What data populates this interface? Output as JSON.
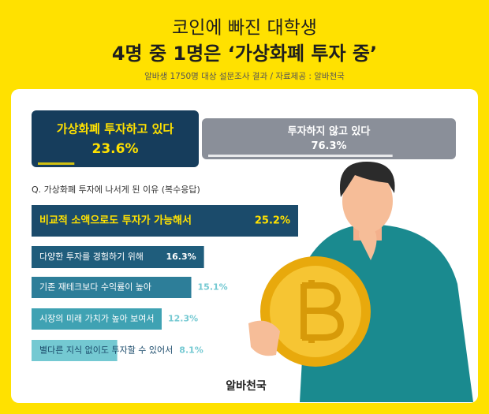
{
  "title_line1": "코인에 빠진 대학생",
  "title_line2": "4명 중 1명은 ‘가상화폐 투자 중’",
  "source": "알바생 1750명 대상 설문조사 결과 / 자료제공 : 알바천국",
  "brand": "알바천국",
  "chart_data": [
    {
      "type": "split-bar",
      "categories": [
        "가상화폐 투자하고 있다",
        "투자하지 않고 있다"
      ],
      "values": [
        23.6,
        76.3
      ],
      "value_labels": [
        "23.6%",
        "76.3%"
      ],
      "colors": [
        "#163d5c",
        "#8a8f99"
      ]
    },
    {
      "type": "hbar",
      "title": "Q. 가상화폐 투자에 나서게 된 이유 (복수응답)",
      "categories": [
        "비교적 소액으로도 투자가 가능해서",
        "다양한 투자를 경험하기 위해",
        "기존 재테크보다 수익률이 높아",
        "시장의 미래 가치가 높아 보여서",
        "별다른 지식 없이도 투자할 수 있어서"
      ],
      "values": [
        25.2,
        16.3,
        15.1,
        12.3,
        8.1
      ],
      "value_labels": [
        "25.2%",
        "16.3%",
        "15.1%",
        "12.3%",
        "8.1%"
      ],
      "colors": [
        "#1b4b6b",
        "#1f5d7c",
        "#2d7e99",
        "#3fa2b3",
        "#74c9d2"
      ]
    }
  ]
}
